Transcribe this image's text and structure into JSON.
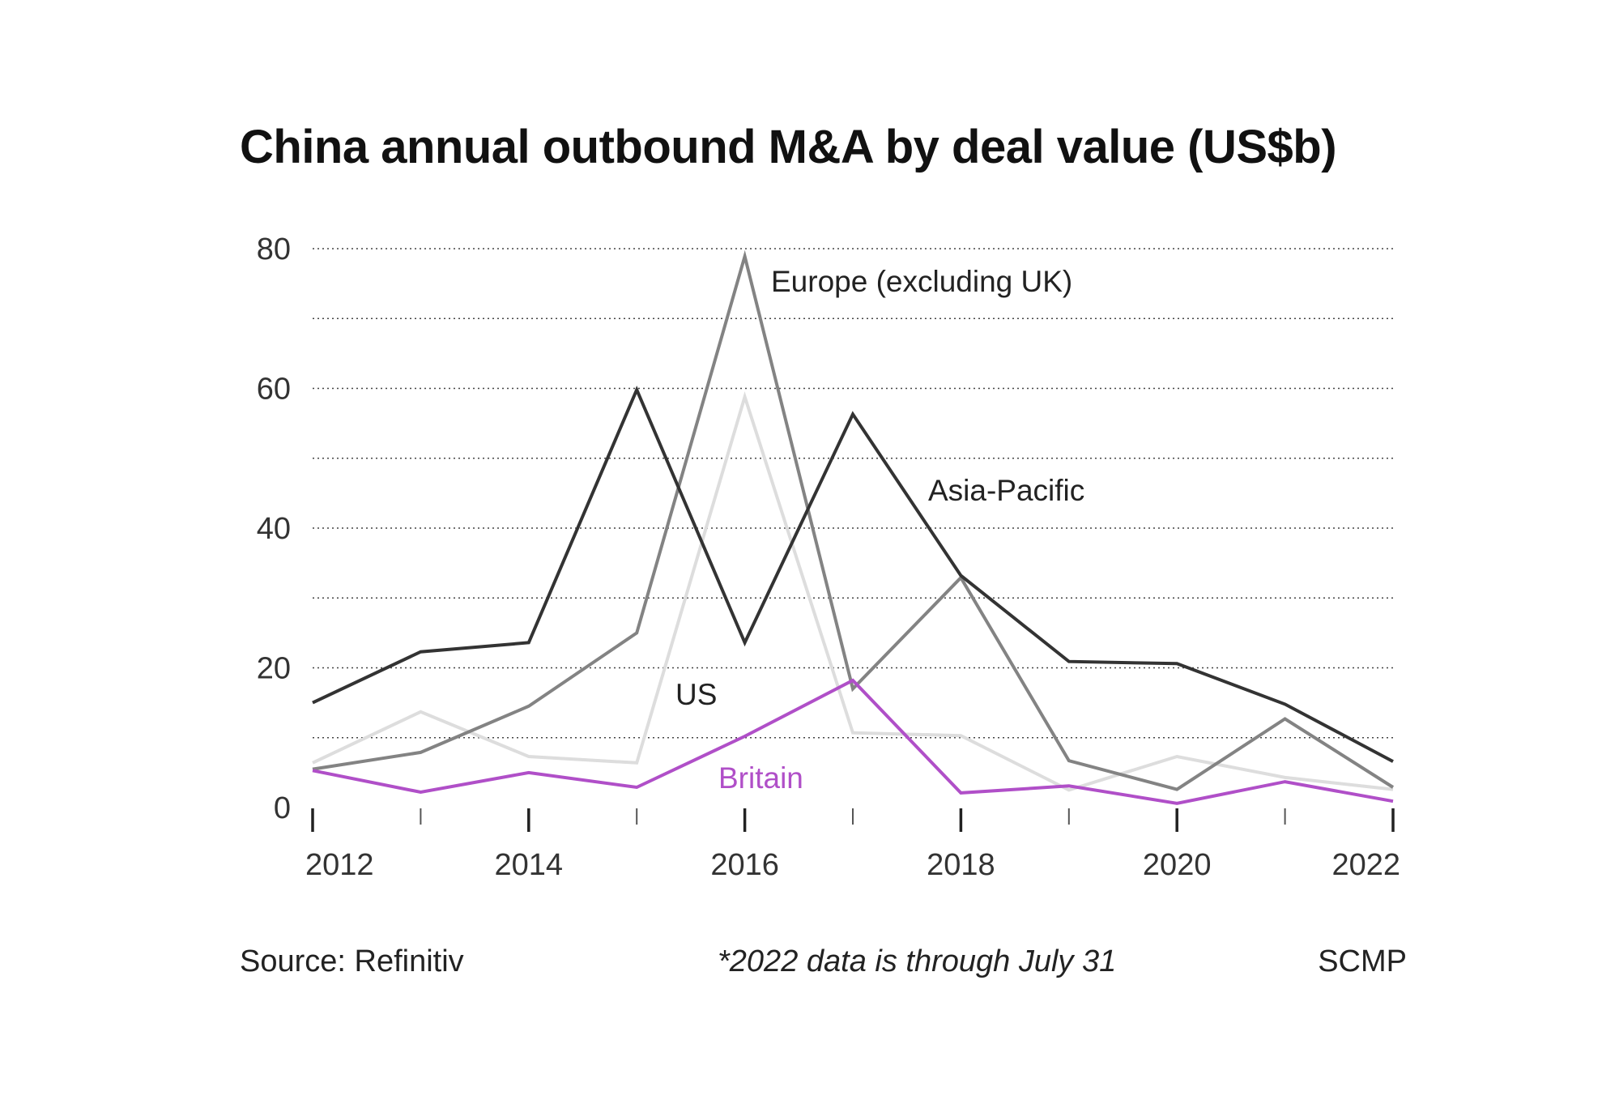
{
  "chart_data": {
    "type": "line",
    "title": "China annual outbound M&A by deal value (US$b)",
    "xlabel": "",
    "ylabel": "",
    "x": [
      2012,
      2013,
      2014,
      2015,
      2016,
      2017,
      2018,
      2019,
      2020,
      2021,
      2022
    ],
    "xlim": [
      2012,
      2022
    ],
    "ylim": [
      0,
      80
    ],
    "x_tick_labels": [
      "2012",
      "2014",
      "2016",
      "2018",
      "2020",
      "2022"
    ],
    "x_tick_values": [
      2012,
      2014,
      2016,
      2018,
      2020,
      2022
    ],
    "y_tick_labels": [
      "0",
      "20",
      "40",
      "60",
      "80"
    ],
    "y_tick_values": [
      0,
      20,
      40,
      60,
      80
    ],
    "y_gridlines": [
      10,
      20,
      30,
      40,
      50,
      60,
      70,
      80
    ],
    "grid": "dotted horizontal",
    "legend": "inline labels",
    "series": [
      {
        "name": "US",
        "color": "#dddddd",
        "values": [
          6.4,
          13.7,
          7.3,
          6.4,
          58.8,
          10.7,
          10.3,
          2.5,
          7.3,
          4.3,
          2.6
        ]
      },
      {
        "name": "Europe (excluding UK)",
        "color": "#838383",
        "values": [
          5.5,
          7.9,
          14.5,
          25.0,
          78.9,
          17.0,
          32.9,
          6.7,
          2.6,
          12.7,
          2.9
        ]
      },
      {
        "name": "Asia-Pacific",
        "color": "#333333",
        "values": [
          15.0,
          22.3,
          23.6,
          59.8,
          23.6,
          56.3,
          33.2,
          20.9,
          20.6,
          14.8,
          6.6
        ]
      },
      {
        "name": "Britain",
        "color": "#b04fc8",
        "values": [
          5.3,
          2.2,
          5.0,
          2.9,
          10.2,
          18.2,
          2.1,
          3.1,
          0.6,
          3.7,
          0.9
        ]
      }
    ]
  },
  "footer": {
    "source": "Source: Refinitiv",
    "note": "*2022 data is through July 31",
    "credit": "SCMP"
  }
}
